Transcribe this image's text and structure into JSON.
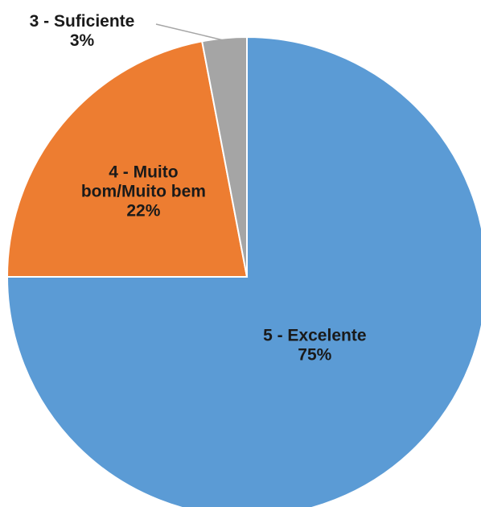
{
  "chart_data": {
    "type": "pie",
    "start_angle_deg": 0,
    "direction": "clockwise",
    "slices": [
      {
        "category": "5 - Excelente",
        "value": 75,
        "percent_label": "75%",
        "color": "#5b9bd5"
      },
      {
        "category": "4 - Muito bom/Muito bem",
        "value": 22,
        "percent_label": "22%",
        "color": "#ed7d31"
      },
      {
        "category": "3 - Suficiente",
        "value": 3,
        "percent_label": "3%",
        "color": "#a5a5a5"
      }
    ],
    "label_lines": {
      "5 - Excelente": [
        "5 - Excelente"
      ],
      "4 - Muito bom/Muito bem": [
        "4 - Muito",
        "bom/Muito bem"
      ],
      "3 - Suficiente": [
        "3 - Suficiente"
      ]
    },
    "slice_border_color": "#ffffff",
    "leader_line_color": "#a6a6a6",
    "legend": "none"
  }
}
